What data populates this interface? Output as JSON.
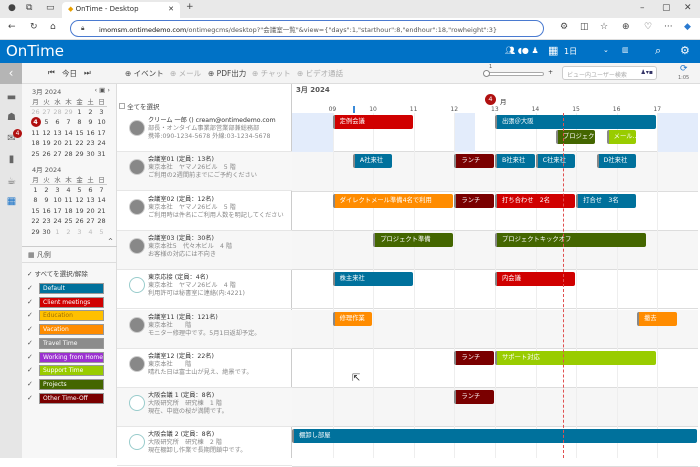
{
  "browser": {
    "tab_title": "OnTime - Desktop",
    "url_host": "imomsm.ontimedemo.com",
    "url_path": "/ontimegcms/desktop?\"会議室一覧\"&view={\"days\":1,\"starthour\":8,\"endhour\":18,\"rowheight\":3}"
  },
  "header": {
    "logo": "OnTime",
    "period": "1日"
  },
  "toolbar": {
    "today": "今日",
    "event": "イベント",
    "mail": "メール",
    "pdf": "PDF出力",
    "chat": "チャット",
    "video": "ビデオ通話",
    "zoom_value": "1",
    "search_placeholder": "ビュー内ユーザー検索",
    "refresh_time": "1:05"
  },
  "sidebar": {
    "mail_badge": "4"
  },
  "calendar": {
    "march": {
      "title": "3月 2024",
      "weekdays": [
        "月",
        "火",
        "水",
        "木",
        "金",
        "土",
        "日"
      ],
      "weeks": [
        [
          "26",
          "27",
          "28",
          "29",
          "1",
          "2",
          "3"
        ],
        [
          "4",
          "5",
          "6",
          "7",
          "8",
          "9",
          "10"
        ],
        [
          "11",
          "12",
          "13",
          "14",
          "15",
          "16",
          "17"
        ],
        [
          "18",
          "19",
          "20",
          "21",
          "22",
          "23",
          "24"
        ],
        [
          "25",
          "26",
          "27",
          "28",
          "29",
          "30",
          "31"
        ]
      ],
      "today": "4"
    },
    "april": {
      "title": "4月 2024",
      "weekdays": [
        "月",
        "火",
        "水",
        "木",
        "金",
        "土",
        "日"
      ],
      "weeks": [
        [
          "1",
          "2",
          "3",
          "4",
          "5",
          "6",
          "7"
        ],
        [
          "8",
          "9",
          "10",
          "11",
          "12",
          "13",
          "14"
        ],
        [
          "15",
          "16",
          "17",
          "18",
          "19",
          "20",
          "21"
        ],
        [
          "22",
          "23",
          "24",
          "25",
          "26",
          "27",
          "28"
        ],
        [
          "29",
          "30",
          "1",
          "2",
          "3",
          "4",
          "5"
        ]
      ]
    }
  },
  "legend": {
    "title": "凡例",
    "select_all": "すべてを選択/解除",
    "items": [
      {
        "label": "Default",
        "color": "#00719c"
      },
      {
        "label": "Client meetings",
        "color": "#d00000"
      },
      {
        "label": "Education",
        "color": "#ffc000"
      },
      {
        "label": "Vacation",
        "color": "#ff8c00"
      },
      {
        "label": "Travel Time",
        "color": "#8c8c8c"
      },
      {
        "label": "Working from Home",
        "color": "#9b30d0"
      },
      {
        "label": "Support Time",
        "color": "#99cc00"
      },
      {
        "label": "Projects",
        "color": "#446600"
      },
      {
        "label": "Other Time-Off",
        "color": "#7a0000"
      }
    ]
  },
  "list": {
    "select_all": "全てを選択",
    "resources": [
      {
        "name": "クリーム 一郎 ()  cream@ontimedemo.com",
        "line2": "部長・オンタイム事業部営業部兼総務部",
        "line3": "携帯:090-1234-5678 外線:03-1234-5678",
        "avatar": "person"
      },
      {
        "name": "会議室01 (定員：13名)",
        "line2": "東京本社　ヤマノ26ビル　5 階",
        "line3": "ご利用の2週間前までにご予約ください",
        "avatar": "photo"
      },
      {
        "name": "会議室02 (定員：12名)",
        "line2": "東京本社　ヤマノ26ビル　5 階",
        "line3": "ご利用時は件名にご利用人数を明記してください",
        "avatar": "photo"
      },
      {
        "name": "会議室03 (定員：30名)",
        "line2": "東京本社5　代々木ビル　4 階",
        "line3": "お客様の対応には不向き",
        "avatar": "photo"
      },
      {
        "name": "東京応接 (定員：4名)",
        "line2": "東京本社　ヤマノ26ビル　4 階",
        "line3": "利用許可は秘書室に連絡(内:4221)",
        "avatar": "door"
      },
      {
        "name": "会議室11 (定員：121名)",
        "line2": "東京本社　　階",
        "line3": "モニター修理中です。5月1日返却予定。",
        "avatar": "photo"
      },
      {
        "name": "会議室12 (定員：22名)",
        "line2": "東京本社　　階",
        "line3": "晴れた日は富士山が見え、絶景です。",
        "avatar": "photo"
      },
      {
        "name": "大阪会議 1 (定員：8名)",
        "line2": "大阪研究所　研究棟　1 階",
        "line3": "現在、中庭の桜が満開です。",
        "avatar": "door"
      },
      {
        "name": "大阪会議 2 (定員：8名)",
        "line2": "大阪研究所　研究棟　2 階",
        "line3": "現在棚卸し作業で長期閉鎖中です。",
        "avatar": "door"
      }
    ]
  },
  "timeline": {
    "month": "3月 2024",
    "day_number": "4",
    "day_label": "月",
    "start_hour": 8,
    "end_hour": 18,
    "hour_labels": [
      "09",
      "10",
      "11",
      "12",
      "13",
      "14",
      "15",
      "16",
      "17"
    ],
    "now": 14.67,
    "events": [
      {
        "row": 0,
        "lane": 0,
        "start": 9,
        "end": 11,
        "title": "定例会議",
        "color": "#d00000"
      },
      {
        "row": 0,
        "lane": 0,
        "start": 13,
        "end": 17,
        "title": "出張＠大阪",
        "color": "#00719c"
      },
      {
        "row": 0,
        "lane": 1,
        "start": 14.5,
        "end": 15.5,
        "title": "プロジェク...",
        "color": "#446600"
      },
      {
        "row": 0,
        "lane": 1,
        "start": 15.75,
        "end": 16.5,
        "title": "メール...",
        "color": "#99cc00"
      },
      {
        "row": 1,
        "lane": 0,
        "start": 9.5,
        "end": 10.5,
        "title": "A社来社",
        "color": "#00719c"
      },
      {
        "row": 1,
        "lane": 0,
        "start": 12,
        "end": 13,
        "title": "ランチ",
        "color": "#7a0000"
      },
      {
        "row": 1,
        "lane": 0,
        "start": 13,
        "end": 14,
        "title": "B社来社",
        "color": "#00719c"
      },
      {
        "row": 1,
        "lane": 0,
        "start": 14,
        "end": 15,
        "title": "C社来社",
        "color": "#00719c"
      },
      {
        "row": 1,
        "lane": 0,
        "start": 15.5,
        "end": 16.5,
        "title": "D社来社",
        "color": "#00719c"
      },
      {
        "row": 2,
        "lane": 0,
        "start": 9,
        "end": 12,
        "title": "ダイレクトメール準備4名で利用",
        "color": "#ff8c00"
      },
      {
        "row": 2,
        "lane": 0,
        "start": 12,
        "end": 13,
        "title": "ランチ",
        "color": "#7a0000"
      },
      {
        "row": 2,
        "lane": 0,
        "start": 13,
        "end": 15,
        "title": "打ち合わせ　2名",
        "color": "#d00000"
      },
      {
        "row": 2,
        "lane": 0,
        "start": 15,
        "end": 16.5,
        "title": "打合せ　3名",
        "color": "#00719c"
      },
      {
        "row": 3,
        "lane": 0,
        "start": 10,
        "end": 12,
        "title": "プロジェクト準備",
        "color": "#446600"
      },
      {
        "row": 3,
        "lane": 0,
        "start": 13,
        "end": 16.75,
        "title": "プロジェクトキックオフ",
        "color": "#446600"
      },
      {
        "row": 4,
        "lane": 0,
        "start": 9,
        "end": 11,
        "title": "株主来社",
        "color": "#00719c"
      },
      {
        "row": 4,
        "lane": 0,
        "start": 13,
        "end": 15,
        "title": "内会議",
        "color": "#d00000"
      },
      {
        "row": 5,
        "lane": 0,
        "start": 9,
        "end": 10,
        "title": "修理作業",
        "color": "#ff8c00"
      },
      {
        "row": 5,
        "lane": 0,
        "start": 16.5,
        "end": 17.5,
        "title": "撤去",
        "color": "#ff8c00"
      },
      {
        "row": 6,
        "lane": 0,
        "start": 12,
        "end": 13,
        "title": "ランチ",
        "color": "#7a0000"
      },
      {
        "row": 6,
        "lane": 0,
        "start": 13,
        "end": 17,
        "title": "サポート対応",
        "color": "#99cc00"
      },
      {
        "row": 7,
        "lane": 0,
        "start": 12,
        "end": 13,
        "title": "ランチ",
        "color": "#7a0000"
      },
      {
        "row": 8,
        "lane": 0,
        "start": 8,
        "end": 18,
        "title": "棚卸し部屋",
        "color": "#00719c"
      }
    ]
  }
}
